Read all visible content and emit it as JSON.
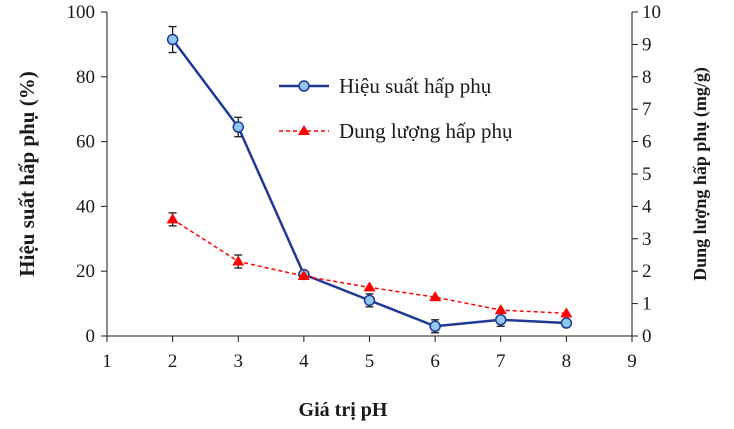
{
  "chart_data": {
    "type": "line",
    "x": [
      2,
      3,
      4,
      5,
      6,
      7,
      8
    ],
    "xlabel": "Giá trị pH",
    "xlim": [
      1,
      9
    ],
    "xticks": [
      "1",
      "2",
      "3",
      "4",
      "5",
      "6",
      "7",
      "8",
      "9"
    ],
    "ylabel": "Hiệu suất hấp phụ (%)",
    "ylim": [
      0,
      100
    ],
    "yticks": [
      "0",
      "20",
      "40",
      "60",
      "80",
      "100"
    ],
    "y2label": "Dung lượng hấp phụ (mg/g)",
    "y2lim": [
      0,
      10
    ],
    "y2ticks": [
      "0",
      "1",
      "2",
      "3",
      "4",
      "5",
      "6",
      "7",
      "8",
      "9",
      "10"
    ],
    "legend_position": "top-right",
    "series": [
      {
        "name": "Hiệu suất hấp phụ",
        "axis": "left",
        "values": [
          91.5,
          64.5,
          19,
          11,
          3,
          5,
          4
        ],
        "errors": [
          4,
          3,
          0,
          2,
          2,
          2,
          0
        ],
        "color": "#1f3a93",
        "marker": "circle",
        "marker_fill": "#8ec9f0",
        "line_style": "solid"
      },
      {
        "name": "Dung lượng hấp phụ",
        "axis": "right",
        "values": [
          3.6,
          2.3,
          1.85,
          1.5,
          1.2,
          0.8,
          0.7
        ],
        "errors": [
          0.2,
          0.2,
          0.0,
          0.0,
          0.0,
          0.0,
          0.0
        ],
        "color": "#ff0000",
        "marker": "triangle",
        "marker_fill": "#ff0000",
        "line_style": "dashed"
      }
    ]
  }
}
